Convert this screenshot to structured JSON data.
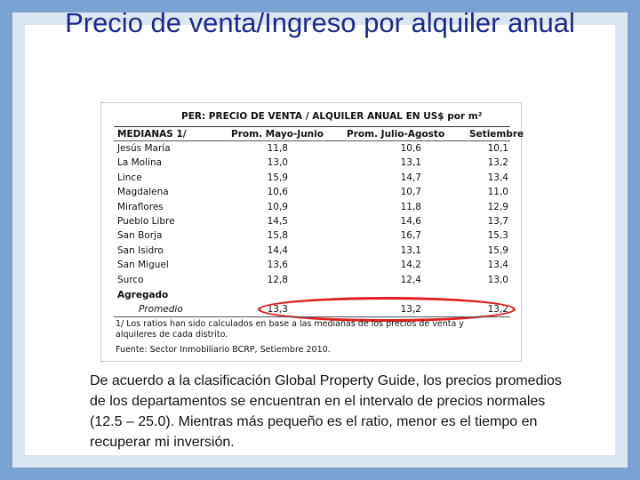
{
  "slide": {
    "title": "Precio de venta/Ingreso por alquiler anual",
    "body": "De acuerdo a la clasificación Global Property Guide, los precios promedios de los departamentos se encuentran en el intervalo de precios normales (12.5 – 25.0). Mientras más pequeño es el ratio, menor es el tiempo en recuperar mi inversión."
  },
  "table": {
    "header": "PER: PRECIO DE VENTA / ALQUILER ANUAL EN US$ por m²",
    "columns": [
      "MEDIANAS 1/",
      "Prom. Mayo-Junio",
      "Prom. Julio-Agosto",
      "Setiembre"
    ],
    "rows": [
      [
        "Jesús María",
        "11,8",
        "10,6",
        "10,1"
      ],
      [
        "La Molina",
        "13,0",
        "13,1",
        "13,2"
      ],
      [
        "Lince",
        "15,9",
        "14,7",
        "13,4"
      ],
      [
        "Magdalena",
        "10,6",
        "10,7",
        "11,0"
      ],
      [
        "Miraflores",
        "10,9",
        "11,8",
        "12,9"
      ],
      [
        "Pueblo Libre",
        "14,5",
        "14,6",
        "13,7"
      ],
      [
        "San Borja",
        "15,8",
        "16,7",
        "15,3"
      ],
      [
        "San Isidro",
        "14,4",
        "13,1",
        "15,9"
      ],
      [
        "San Miguel",
        "13,6",
        "14,2",
        "13,4"
      ],
      [
        "Surco",
        "12,8",
        "12,4",
        "13,0"
      ]
    ],
    "group_label": "Agregado",
    "promedio": [
      "Promedio",
      "13,3",
      "13,2",
      "13,2"
    ],
    "note": "1/ Los ratios han sido calculados en base a las medianas de los precios de venta y alquileres de cada distrito.",
    "source": "Fuente: Sector Inmobiliario BCRP, Setiembre 2010."
  },
  "colors": {
    "title": "#1a2a8c",
    "highlight": "#e02020",
    "background": "#7ba3d2"
  }
}
